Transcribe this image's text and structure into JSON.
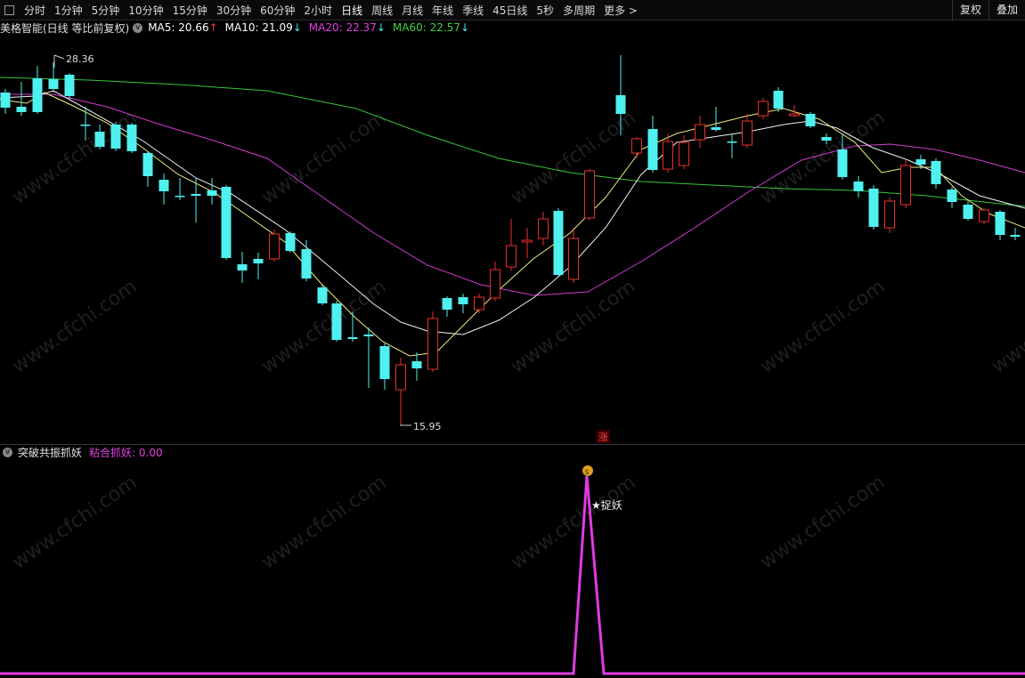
{
  "toolbar": {
    "periods": [
      "分时",
      "1分钟",
      "5分钟",
      "10分钟",
      "15分钟",
      "30分钟",
      "60分钟",
      "2小时",
      "日线",
      "周线",
      "月线",
      "年线",
      "季线",
      "45日线",
      "5秒",
      "多周期",
      "更多"
    ],
    "active": "日线",
    "right_buttons": [
      "复权",
      "叠加"
    ]
  },
  "info": {
    "title": "美格智能(日线 等比前复权)",
    "ma": [
      {
        "label": "MA5: 20.66",
        "arrow": "↑",
        "color": "#ffffff",
        "arrow_color": "#ff3333"
      },
      {
        "label": "MA10: 21.09",
        "arrow": "↓",
        "color": "#ffffff",
        "arrow_color": "#4de8e8"
      },
      {
        "label": "MA20: 22.37",
        "arrow": "↓",
        "color": "#e040e0",
        "arrow_color": "#4de8e8"
      },
      {
        "label": "MA60: 22.57",
        "arrow": "↓",
        "color": "#40d040",
        "arrow_color": "#4de8e8"
      }
    ]
  },
  "main_chart": {
    "high_label": "28.36",
    "low_label": "15.95",
    "zhang_badge": "涨",
    "watermark": "www.cfchi.com"
  },
  "indicator": {
    "name": "突破共振抓妖",
    "line_label": "粘合抓妖: 0.00",
    "signal_label": "★捉妖",
    "coin_icon": "$"
  }
}
